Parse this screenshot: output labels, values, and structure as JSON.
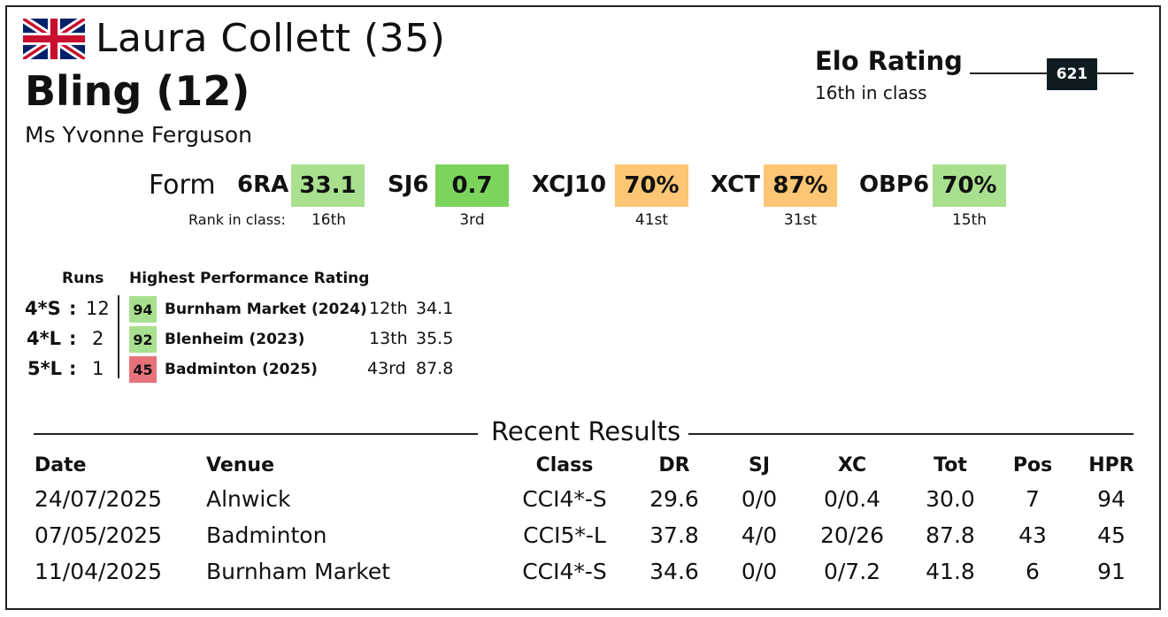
{
  "rider": {
    "name": "Laura Collett (35)",
    "flag": "united-kingdom-flag"
  },
  "horse": {
    "name": "Bling (12)"
  },
  "owner": "Ms Yvonne Ferguson",
  "elo": {
    "title": "Elo Rating",
    "subtitle": "16th in class",
    "value": "621"
  },
  "form": {
    "label": "Form",
    "rank_label": "Rank in class:",
    "metrics": [
      {
        "label": "6RA",
        "value": "33.1",
        "rank": "16th",
        "color": "#a9e08f"
      },
      {
        "label": "SJ6",
        "value": "0.7",
        "rank": "3rd",
        "color": "#7dd45c"
      },
      {
        "label": "XCJ10",
        "value": "70%",
        "rank": "41st",
        "color": "#fcc674"
      },
      {
        "label": "XCT",
        "value": "87%",
        "rank": "31st",
        "color": "#fcc674"
      },
      {
        "label": "OBP6",
        "value": "70%",
        "rank": "15th",
        "color": "#a9e08f"
      }
    ]
  },
  "runs": {
    "runs_header": "Runs",
    "hpr_header": "Highest Performance Rating",
    "rows": [
      {
        "level": "4*S",
        "sep": ":",
        "count": "12",
        "hpr": "94",
        "event": "Burnham Market (2024)",
        "pos": "12th",
        "score": "34.1",
        "color": "#a9e08f"
      },
      {
        "level": "4*L",
        "sep": ":",
        "count": "2",
        "hpr": "92",
        "event": "Blenheim (2023)",
        "pos": "13th",
        "score": "35.5",
        "color": "#a9e08f"
      },
      {
        "level": "5*L",
        "sep": ":",
        "count": "1",
        "hpr": "45",
        "event": "Badminton (2025)",
        "pos": "43rd",
        "score": "87.8",
        "color": "#e8727a"
      }
    ]
  },
  "results": {
    "title": "Recent Results",
    "headers": [
      "Date",
      "Venue",
      "Class",
      "DR",
      "SJ",
      "XC",
      "Tot",
      "Pos",
      "HPR"
    ],
    "rows": [
      [
        "24/07/2025",
        "Alnwick",
        "CCI4*-S",
        "29.6",
        "0/0",
        "0/0.4",
        "30.0",
        "7",
        "94"
      ],
      [
        "07/05/2025",
        "Badminton",
        "CCI5*-L",
        "37.8",
        "4/0",
        "20/26",
        "87.8",
        "43",
        "45"
      ],
      [
        "11/04/2025",
        "Burnham Market",
        "CCI4*-S",
        "34.6",
        "0/0",
        "0/7.2",
        "41.8",
        "6",
        "91"
      ]
    ]
  }
}
